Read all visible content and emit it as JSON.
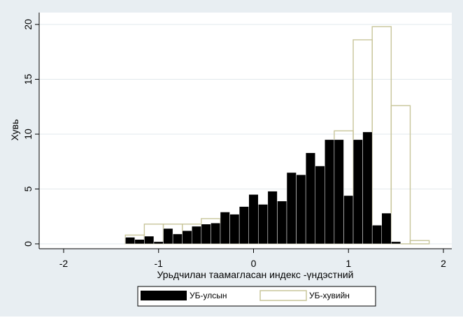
{
  "chart_data": {
    "type": "bar",
    "title": "",
    "xlabel": "Урьдчилан таамагласан индекс -үндэстний",
    "ylabel": "Хувь",
    "xlim": [
      -2,
      2
    ],
    "ylim": [
      0,
      21
    ],
    "xticks": [
      "-2",
      "-1",
      "0",
      "1",
      "2"
    ],
    "yticks": [
      "0",
      "5",
      "10",
      "15",
      "20"
    ],
    "grid": "horizontal",
    "legend_position": "bottom",
    "background": "#e8eef2",
    "series": [
      {
        "name": "УБ-улсын",
        "style": "filled",
        "color": "#000000",
        "bin_width": 0.1,
        "bin_starts": [
          -1.35,
          -1.25,
          -1.15,
          -1.05,
          -0.95,
          -0.85,
          -0.75,
          -0.65,
          -0.55,
          -0.45,
          -0.35,
          -0.25,
          -0.15,
          -0.05,
          0.05,
          0.15,
          0.25,
          0.35,
          0.45,
          0.55,
          0.65,
          0.75,
          0.85,
          0.95,
          1.05,
          1.15,
          1.25,
          1.35,
          1.45,
          1.55
        ],
        "values": [
          0.6,
          0.4,
          0.7,
          0.2,
          1.4,
          0.9,
          1.2,
          1.6,
          1.8,
          1.9,
          2.9,
          2.7,
          3.4,
          4.5,
          3.6,
          4.8,
          3.9,
          6.5,
          6.3,
          8.3,
          7.1,
          9.5,
          9.5,
          4.4,
          9.5,
          10.2,
          1.7,
          2.8,
          0.2,
          0.0
        ]
      },
      {
        "name": "УБ-хувийн",
        "style": "outline",
        "color": "#c8c59a",
        "bin_width": 0.2,
        "bin_starts": [
          -1.35,
          -1.15,
          -0.95,
          -0.75,
          -0.55,
          -0.35,
          -0.15,
          0.05,
          0.25,
          0.45,
          0.65,
          0.85,
          1.05,
          1.25,
          1.45,
          1.65
        ],
        "values": [
          0.8,
          1.8,
          1.8,
          1.8,
          2.3,
          2.2,
          1.8,
          1.8,
          3.3,
          3.6,
          3.9,
          10.3,
          18.6,
          19.8,
          12.6,
          0.3
        ]
      }
    ]
  }
}
